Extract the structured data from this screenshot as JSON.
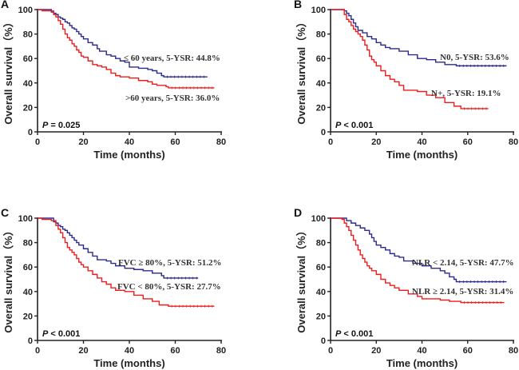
{
  "chart_data": [
    {
      "type": "line",
      "panel_label": "A",
      "title": "",
      "xlabel": "Time (months)",
      "ylabel": "Overall survival（%）",
      "xlim": [
        0,
        80
      ],
      "ylim": [
        0,
        100
      ],
      "xticks": [
        0,
        20,
        40,
        60,
        80
      ],
      "yticks": [
        0,
        20,
        40,
        60,
        80,
        100
      ],
      "p_value": {
        "prefix": "P",
        "text": " = 0.025"
      },
      "series": [
        {
          "name": "≤ 60 years",
          "color": "#2b2a8c",
          "annotation": "≤  60 years, 5-YSR: 44.8%",
          "x": [
            0,
            5,
            6,
            7,
            8,
            9,
            10,
            11,
            12,
            13,
            14,
            15,
            16,
            17,
            18,
            19,
            20,
            22,
            24,
            26,
            27,
            30,
            32,
            34,
            36,
            38,
            40,
            44,
            48,
            50,
            52,
            54,
            55,
            74
          ],
          "y": [
            100,
            100,
            98,
            97,
            96,
            94,
            93,
            92,
            90,
            89,
            87,
            85,
            84,
            82,
            80,
            78,
            76,
            73,
            71,
            68,
            66,
            63,
            62,
            60,
            58,
            57,
            53,
            52,
            51,
            50,
            48,
            46,
            45,
            45
          ]
        },
        {
          "name": ">60 years",
          "color": "#ee1c1c",
          "annotation": ">60 years, 5-YSR: 36.0%",
          "x": [
            0,
            2,
            5,
            7,
            8,
            9,
            10,
            11,
            12,
            13,
            14,
            15,
            16,
            17,
            18,
            19,
            20,
            22,
            24,
            26,
            28,
            30,
            32,
            34,
            36,
            40,
            44,
            48,
            50,
            52,
            56,
            57,
            77
          ],
          "y": [
            100,
            99,
            99,
            96,
            94,
            91,
            88,
            84,
            80,
            77,
            75,
            72,
            70,
            67,
            65,
            62,
            61,
            58,
            55,
            54,
            53,
            51,
            48,
            46,
            45,
            44,
            42,
            41,
            39,
            38,
            37,
            36,
            36
          ]
        }
      ]
    },
    {
      "type": "line",
      "panel_label": "B",
      "title": "",
      "xlabel": "Time (months)",
      "ylabel": "Overall survival（%）",
      "xlim": [
        0,
        80
      ],
      "ylim": [
        0,
        100
      ],
      "xticks": [
        0,
        20,
        40,
        60,
        80
      ],
      "yticks": [
        0,
        20,
        40,
        60,
        80,
        100
      ],
      "p_value": {
        "prefix": "P",
        "text": " < 0.001"
      },
      "series": [
        {
          "name": "N0",
          "color": "#2b2a8c",
          "annotation": "N0, 5-YSR: 53.6%",
          "x": [
            0,
            5,
            6,
            7,
            8,
            9,
            10,
            11,
            12,
            14,
            16,
            18,
            20,
            22,
            24,
            26,
            30,
            34,
            38,
            42,
            46,
            50,
            55,
            77
          ],
          "y": [
            100,
            100,
            99,
            97,
            95,
            92,
            89,
            86,
            83,
            81,
            78,
            76,
            73,
            71,
            69,
            68,
            66,
            63,
            60,
            59,
            57,
            55,
            54,
            54
          ]
        },
        {
          "name": "N+",
          "color": "#ee1c1c",
          "annotation": "N+, 5-YSR: 19.1%",
          "x": [
            0,
            5,
            6,
            7,
            8,
            9,
            10,
            11,
            12,
            13,
            14,
            15,
            16,
            17,
            18,
            19,
            20,
            22,
            24,
            26,
            28,
            30,
            32,
            38,
            42,
            46,
            50,
            54,
            57,
            69
          ],
          "y": [
            100,
            100,
            96,
            92,
            90,
            87,
            84,
            82,
            80,
            78,
            75,
            71,
            67,
            62,
            59,
            57,
            54,
            50,
            46,
            43,
            41,
            38,
            34,
            33,
            30,
            28,
            24,
            21,
            19,
            19
          ]
        }
      ]
    },
    {
      "type": "line",
      "panel_label": "C",
      "title": "",
      "xlabel": "Time (months)",
      "ylabel": "Overall survival（%）",
      "xlim": [
        0,
        80
      ],
      "ylim": [
        0,
        100
      ],
      "xticks": [
        0,
        20,
        40,
        60,
        80
      ],
      "yticks": [
        0,
        20,
        40,
        60,
        80,
        100
      ],
      "p_value": {
        "prefix": "P",
        "text": " < 0.001"
      },
      "series": [
        {
          "name": "FVC ≥ 80%",
          "color": "#2b2a8c",
          "annotation": "FVC ≥  80%, 5-YSR: 51.2%",
          "x": [
            0,
            6,
            7,
            8,
            9,
            10,
            11,
            12,
            13,
            14,
            15,
            16,
            17,
            18,
            20,
            22,
            24,
            26,
            30,
            32,
            34,
            38,
            42,
            46,
            50,
            54,
            55,
            70
          ],
          "y": [
            100,
            100,
            97,
            96,
            94,
            93,
            91,
            90,
            88,
            86,
            84,
            82,
            80,
            78,
            75,
            72,
            69,
            66,
            65,
            63,
            61,
            59,
            58,
            57,
            55,
            53,
            51,
            51
          ]
        },
        {
          "name": "FVC < 80%",
          "color": "#ee1c1c",
          "annotation": "FVC < 80%, 5-YSR: 27.7%",
          "x": [
            0,
            2,
            6,
            8,
            9,
            10,
            11,
            12,
            13,
            14,
            15,
            16,
            17,
            18,
            19,
            20,
            22,
            24,
            26,
            28,
            30,
            32,
            34,
            38,
            42,
            46,
            50,
            53,
            57,
            77
          ],
          "y": [
            100,
            99,
            98,
            94,
            91,
            88,
            84,
            80,
            76,
            74,
            72,
            70,
            67,
            64,
            62,
            60,
            57,
            54,
            51,
            48,
            46,
            43,
            41,
            40,
            37,
            34,
            32,
            29,
            28,
            28
          ]
        }
      ]
    },
    {
      "type": "line",
      "panel_label": "D",
      "title": "",
      "xlabel": "Time (months)",
      "ylabel": "Overall survival（%）",
      "xlim": [
        0,
        80
      ],
      "ylim": [
        0,
        100
      ],
      "xticks": [
        0,
        20,
        40,
        60,
        80
      ],
      "yticks": [
        0,
        20,
        40,
        60,
        80,
        100
      ],
      "p_value": {
        "prefix": "P",
        "text": " < 0.001"
      },
      "series": [
        {
          "name": "NLR < 2.14",
          "color": "#2b2a8c",
          "annotation": "NLR < 2.14, 5-YSR: 47.7%",
          "x": [
            0,
            6,
            7,
            9,
            11,
            13,
            15,
            17,
            18,
            19,
            20,
            22,
            24,
            26,
            28,
            30,
            32,
            36,
            40,
            44,
            48,
            50,
            52,
            54,
            55,
            77
          ],
          "y": [
            100,
            100,
            98,
            96,
            94,
            92,
            90,
            87,
            84,
            81,
            78,
            76,
            74,
            71,
            69,
            68,
            65,
            63,
            61,
            59,
            57,
            55,
            52,
            50,
            48,
            48
          ]
        },
        {
          "name": "NLR ≥ 2.14",
          "color": "#ee1c1c",
          "annotation": "NLR ≥ 2.14, 5-YSR: 31.4%",
          "x": [
            0,
            5,
            6,
            7,
            8,
            9,
            10,
            11,
            12,
            13,
            14,
            15,
            16,
            17,
            18,
            20,
            22,
            24,
            26,
            28,
            30,
            34,
            38,
            40,
            48,
            52,
            57,
            76
          ],
          "y": [
            100,
            99,
            96,
            93,
            90,
            86,
            82,
            78,
            74,
            70,
            67,
            64,
            61,
            59,
            57,
            54,
            50,
            47,
            45,
            43,
            41,
            38,
            36,
            34,
            33,
            32,
            31,
            31
          ]
        }
      ]
    }
  ]
}
